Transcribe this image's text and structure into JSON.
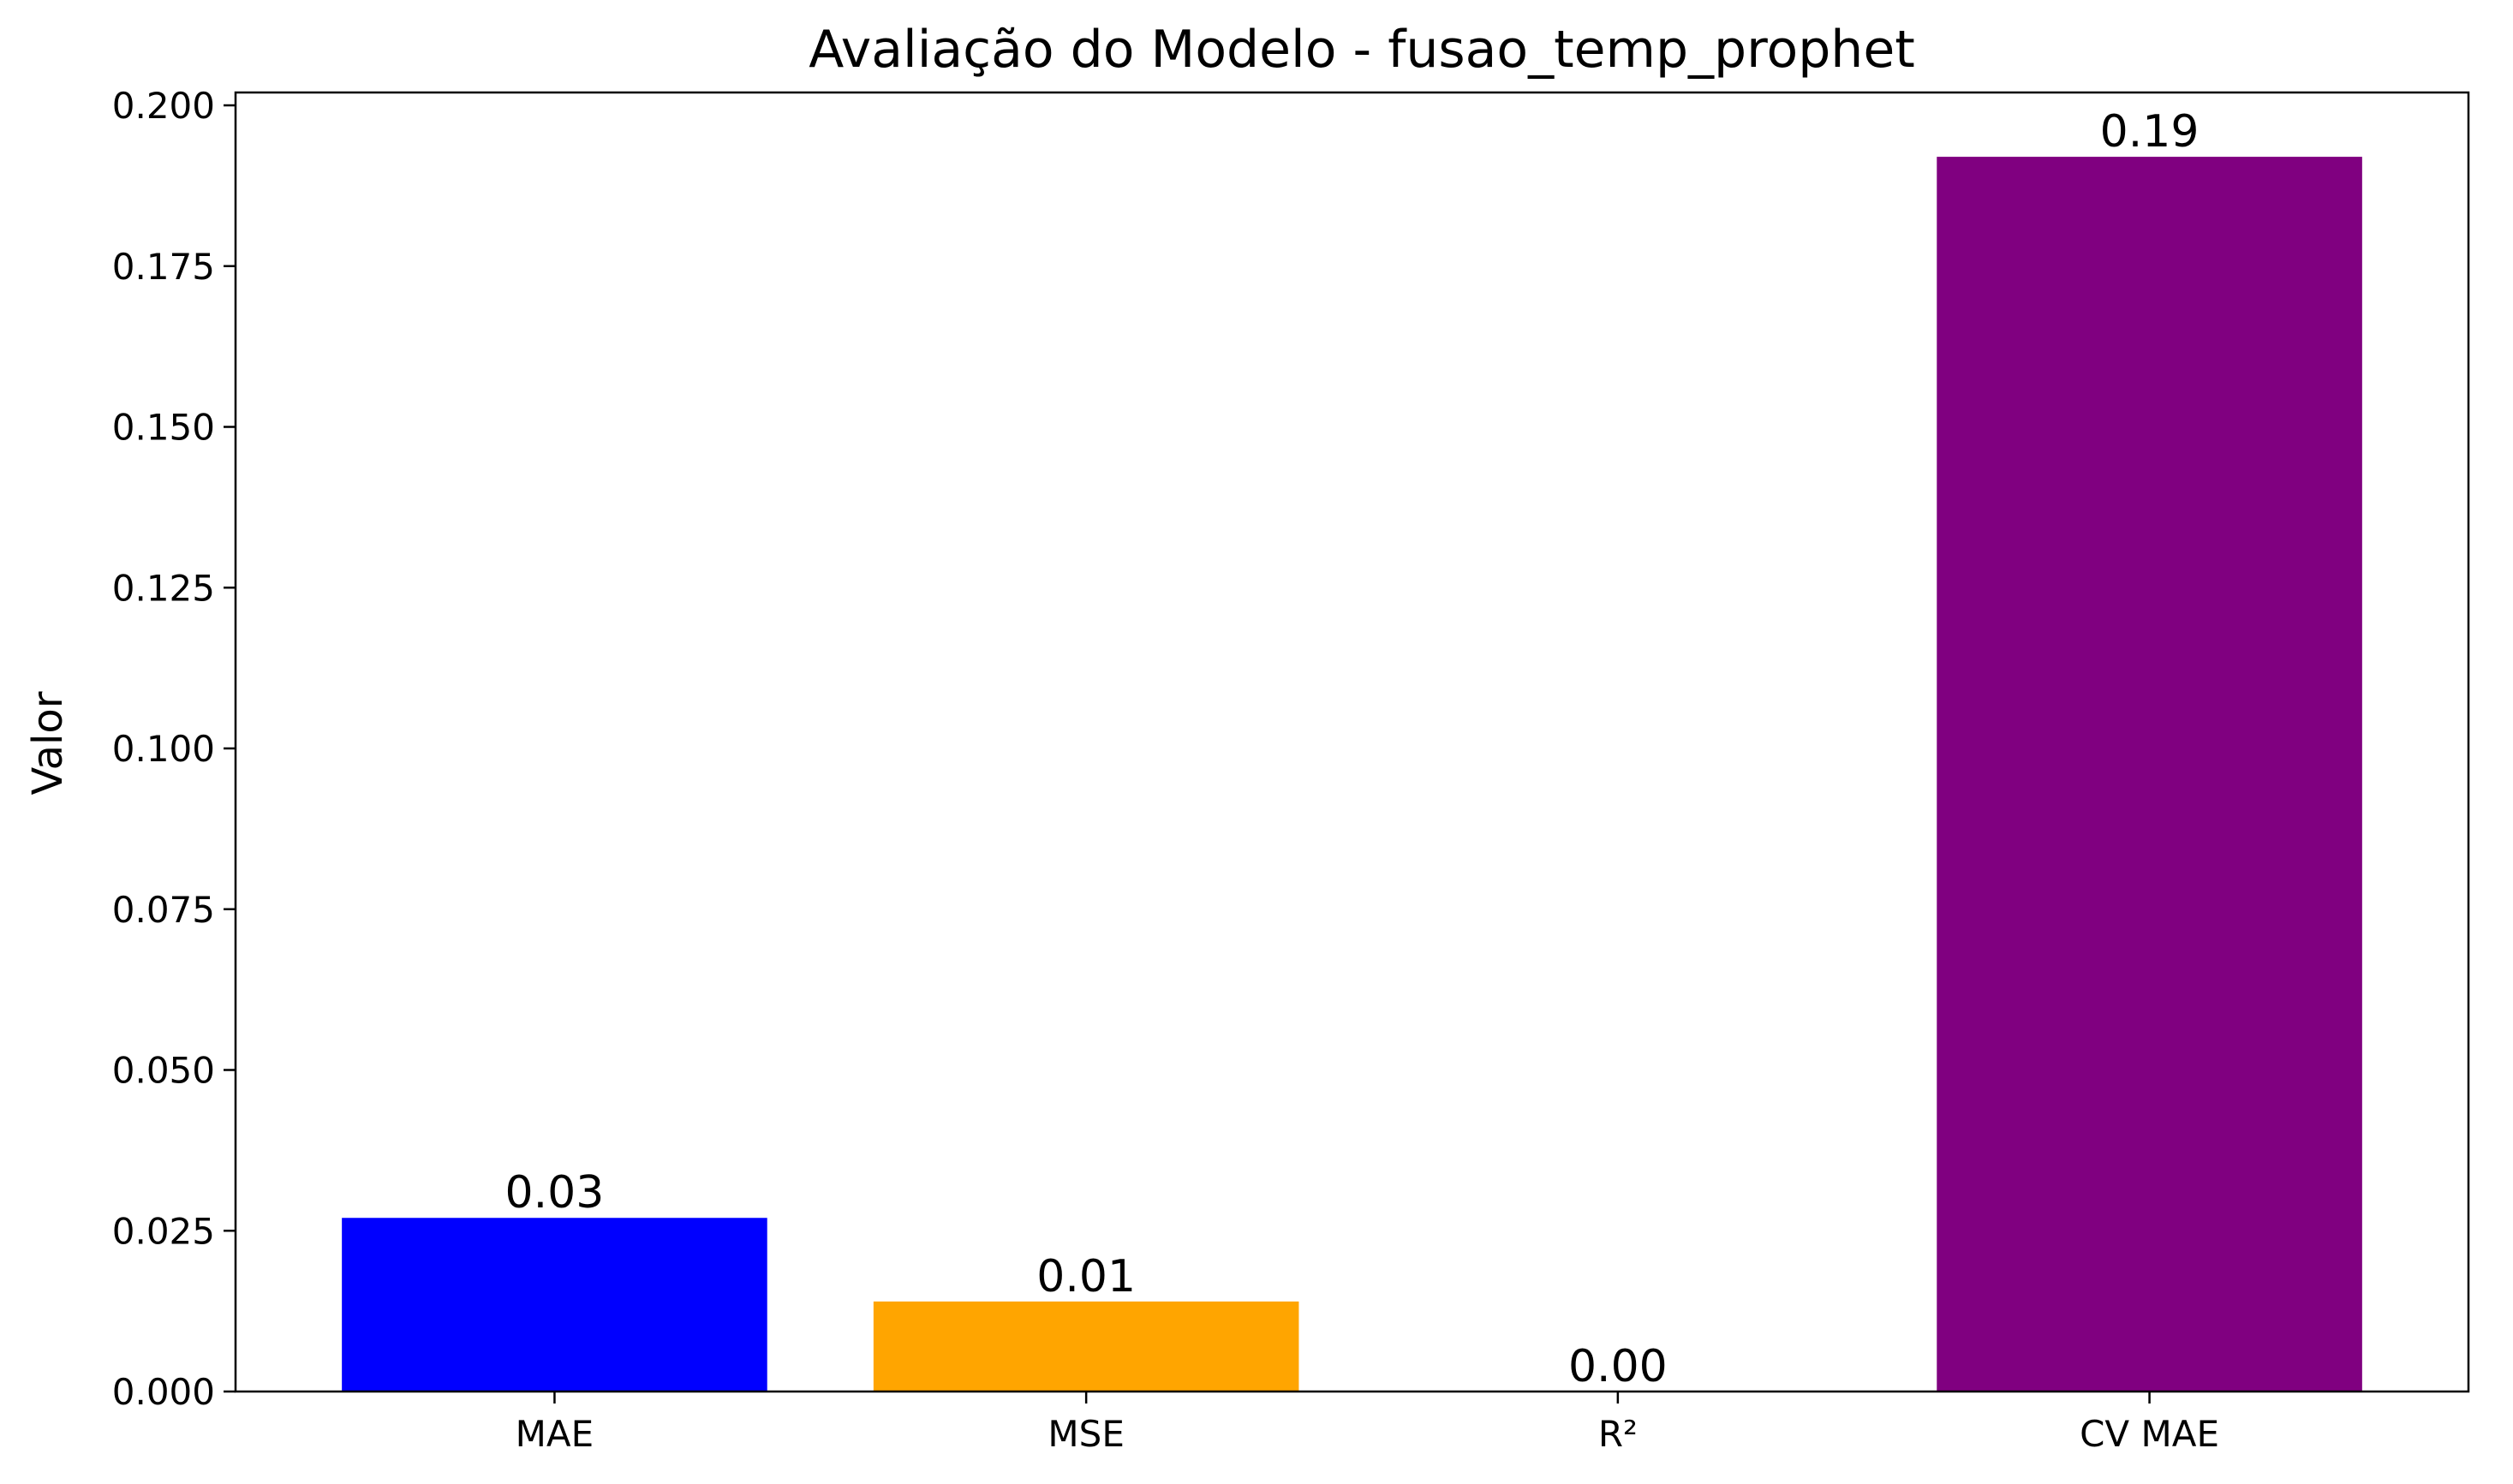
{
  "chart_data": {
    "type": "bar",
    "title": "Avaliação do Modelo - fusao_temp_prophet",
    "xlabel": "",
    "ylabel": "Valor",
    "categories": [
      "MAE",
      "MSE",
      "R²",
      "CV MAE"
    ],
    "values": [
      0.027,
      0.014,
      0.0,
      0.192
    ],
    "data_labels": [
      "0.03",
      "0.01",
      "0.00",
      "0.19"
    ],
    "colors": [
      "#0000ff",
      "#ffa500",
      "#ffffff",
      "#800080"
    ],
    "ylim": [
      0,
      0.202
    ],
    "yticks": [
      0.0,
      0.025,
      0.05,
      0.075,
      0.1,
      0.125,
      0.15,
      0.175,
      0.2
    ],
    "ytick_labels": [
      "0.000",
      "0.025",
      "0.050",
      "0.075",
      "0.100",
      "0.125",
      "0.150",
      "0.175",
      "0.200"
    ],
    "grid": false,
    "legend": "none"
  }
}
